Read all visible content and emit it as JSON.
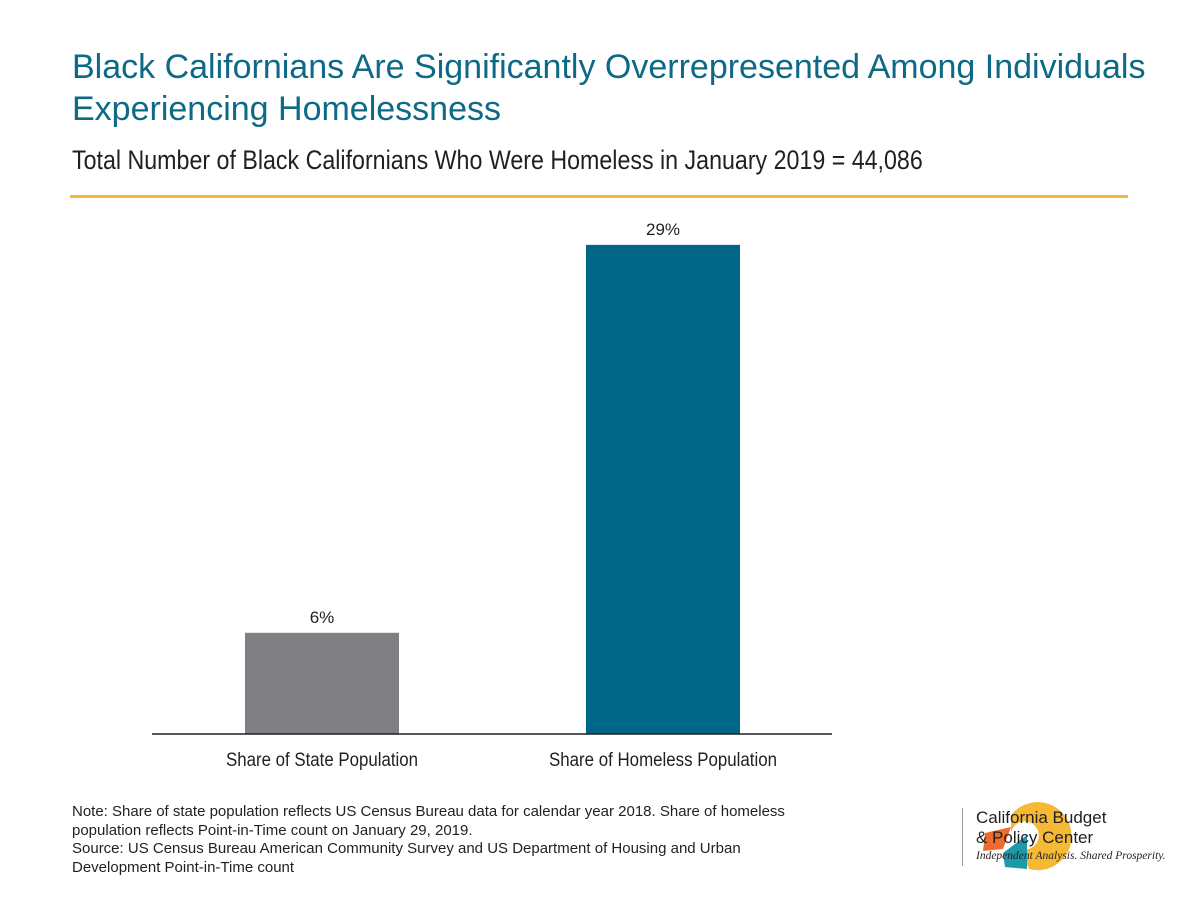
{
  "header": {
    "title": "Black Californians Are Significantly Overrepresented Among Individuals Experiencing Homelessness",
    "subtitle": "Total Number of Black Californians Who Were Homeless in January 2019 = 44,086"
  },
  "chart_data": {
    "type": "bar",
    "title": "Black Californians Are Significantly Overrepresented Among Individuals Experiencing Homelessness",
    "subtitle": "Total Number of Black Californians Who Were Homeless in January 2019 = 44,086",
    "categories": [
      "Share of State Population",
      "Share of Homeless Population"
    ],
    "values": [
      6,
      29
    ],
    "data_labels": [
      "6%",
      "29%"
    ],
    "colors": [
      "#807f83",
      "#006688"
    ],
    "xlabel": "",
    "ylabel": "",
    "ylim": [
      0,
      30
    ],
    "grid": false
  },
  "footer": {
    "note_line1": "Note: Share of state population reflects US Census Bureau data for calendar year 2018. Share of homeless population reflects Point-in-Time count on January 29, 2019.",
    "note_line2": "Source: US Census Bureau American Community Survey and US Department of Housing and Urban Development Point-in-Time count"
  },
  "logo": {
    "org_line1": "California Budget",
    "org_line2": "& Policy Center",
    "tagline": "Independent Analysis. Shared Prosperity.",
    "colors": {
      "yellow": "#f5b935",
      "orange": "#ef6b2d",
      "teal": "#1d9aa8"
    }
  },
  "colors": {
    "title": "#0d6a86",
    "rule": "#f5b935"
  }
}
